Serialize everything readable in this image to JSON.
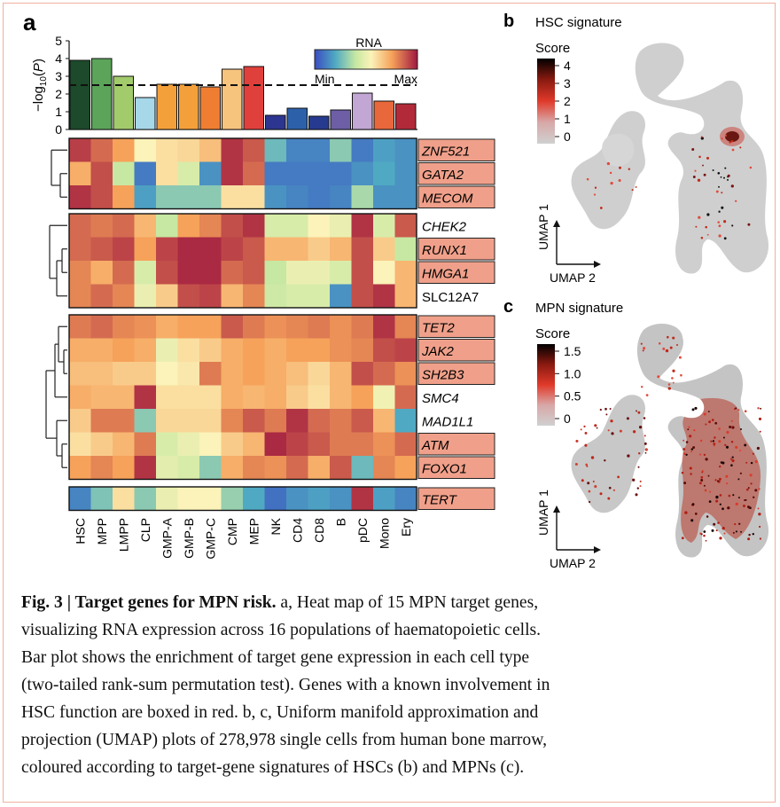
{
  "panels": {
    "a_label": "a",
    "b_label": "b",
    "c_label": "c",
    "b_title": "HSC signature",
    "c_title": "MPN signature"
  },
  "colors": {
    "gene_box": "#f0a08a",
    "dendrogram": "#222222"
  },
  "chart_data": [
    {
      "type": "bar",
      "title": "",
      "ylabel": "-log10(P)",
      "ylim": [
        0,
        5
      ],
      "yticks": [
        0,
        1,
        2,
        3,
        4,
        5
      ],
      "threshold": 2.5,
      "categories": [
        "HSC",
        "MPP",
        "LMPP",
        "CLP",
        "GMP-A",
        "GMP-B",
        "GMP-C",
        "CMP",
        "MEP",
        "NK",
        "CD4",
        "CD8",
        "B",
        "pDC",
        "Mono",
        "Ery"
      ],
      "values": [
        3.9,
        4.0,
        3.0,
        1.8,
        2.55,
        2.55,
        2.4,
        3.4,
        3.55,
        0.8,
        1.2,
        0.75,
        1.1,
        2.05,
        1.6,
        1.45
      ],
      "bar_colors": [
        "#1c4a2a",
        "#5ba45a",
        "#a2cc6c",
        "#a6d8ea",
        "#f4a03a",
        "#f4a03a",
        "#ef7e32",
        "#f7c47e",
        "#e0403c",
        "#2c3590",
        "#2c61aa",
        "#263a90",
        "#6d5ea6",
        "#c2a6d3",
        "#e8683c",
        "#b22a3a"
      ]
    },
    {
      "type": "heatmap",
      "colorbar": {
        "title": "RNA",
        "min_label": "Min",
        "max_label": "Max"
      },
      "columns": [
        "HSC",
        "MPP",
        "LMPP",
        "CLP",
        "GMP-A",
        "GMP-B",
        "GMP-C",
        "CMP",
        "MEP",
        "NK",
        "CD4",
        "CD8",
        "B",
        "pDC",
        "Mono",
        "Ery"
      ],
      "groups": [
        {
          "genes": [
            "ZNF521",
            "GATA2",
            "MECOM"
          ],
          "boxed": [
            true,
            true,
            true
          ],
          "values": [
            [
              0.93,
              0.85,
              0.75,
              0.55,
              0.6,
              0.62,
              0.68,
              0.95,
              0.88,
              0.25,
              0.12,
              0.12,
              0.3,
              0.1,
              0.18,
              0.15
            ],
            [
              0.72,
              0.9,
              0.4,
              0.1,
              0.6,
              0.45,
              0.15,
              0.95,
              0.85,
              0.1,
              0.1,
              0.1,
              0.1,
              0.15,
              0.2,
              0.15
            ],
            [
              0.95,
              0.9,
              0.75,
              0.18,
              0.3,
              0.3,
              0.3,
              0.6,
              0.6,
              0.15,
              0.12,
              0.1,
              0.12,
              0.35,
              0.15,
              0.15
            ]
          ]
        },
        {
          "genes": [
            "CHEK2",
            "RUNX1",
            "HMGA1",
            "SLC12A7"
          ],
          "boxed": [
            false,
            true,
            true,
            false
          ],
          "values": [
            [
              0.85,
              0.82,
              0.85,
              0.7,
              0.4,
              0.75,
              0.8,
              0.9,
              0.95,
              0.45,
              0.45,
              0.55,
              0.5,
              0.95,
              0.45,
              0.88
            ],
            [
              0.85,
              0.88,
              0.92,
              0.75,
              0.92,
              0.97,
              0.97,
              0.92,
              0.88,
              0.7,
              0.7,
              0.65,
              0.7,
              0.9,
              0.65,
              0.4
            ],
            [
              0.8,
              0.72,
              0.85,
              0.45,
              0.9,
              0.97,
              0.97,
              0.85,
              0.88,
              0.4,
              0.5,
              0.5,
              0.45,
              0.9,
              0.55,
              0.7
            ],
            [
              0.8,
              0.85,
              0.8,
              0.5,
              0.65,
              0.9,
              0.92,
              0.7,
              0.8,
              0.42,
              0.45,
              0.45,
              0.15,
              0.9,
              0.95,
              0.7
            ]
          ]
        },
        {
          "genes": [
            "TET2",
            "JAK2",
            "SH2B3",
            "SMC4",
            "MAD1L1",
            "ATM",
            "FOXO1"
          ],
          "boxed": [
            true,
            true,
            true,
            false,
            false,
            true,
            true
          ],
          "values": [
            [
              0.82,
              0.85,
              0.8,
              0.78,
              0.72,
              0.75,
              0.75,
              0.88,
              0.82,
              0.78,
              0.8,
              0.82,
              0.78,
              0.82,
              0.95,
              0.8
            ],
            [
              0.72,
              0.72,
              0.75,
              0.72,
              0.5,
              0.6,
              0.65,
              0.72,
              0.75,
              0.72,
              0.75,
              0.75,
              0.78,
              0.8,
              0.9,
              0.92
            ],
            [
              0.68,
              0.68,
              0.65,
              0.65,
              0.55,
              0.58,
              0.82,
              0.72,
              0.75,
              0.72,
              0.68,
              0.62,
              0.7,
              0.9,
              0.85,
              0.78
            ],
            [
              0.72,
              0.7,
              0.7,
              0.95,
              0.6,
              0.6,
              0.6,
              0.72,
              0.7,
              0.72,
              0.65,
              0.6,
              0.7,
              0.75,
              0.52,
              0.85
            ],
            [
              0.65,
              0.82,
              0.82,
              0.3,
              0.62,
              0.62,
              0.62,
              0.8,
              0.88,
              0.82,
              0.95,
              0.85,
              0.82,
              0.88,
              0.7,
              0.2
            ],
            [
              0.6,
              0.65,
              0.7,
              0.82,
              0.45,
              0.5,
              0.55,
              0.65,
              0.7,
              0.97,
              0.92,
              0.88,
              0.82,
              0.82,
              0.78,
              0.85
            ],
            [
              0.75,
              0.8,
              0.75,
              0.95,
              0.48,
              0.45,
              0.3,
              0.72,
              0.8,
              0.78,
              0.85,
              0.72,
              0.88,
              0.25,
              0.8,
              0.75
            ]
          ]
        },
        {
          "genes": [
            "TERT"
          ],
          "boxed": [
            true
          ],
          "values": [
            [
              0.12,
              0.28,
              0.6,
              0.3,
              0.5,
              0.55,
              0.55,
              0.32,
              0.2,
              0.08,
              0.15,
              0.18,
              0.15,
              0.95,
              0.18,
              0.12
            ]
          ]
        }
      ]
    },
    {
      "type": "scatter",
      "title": "HSC signature",
      "colorbar": {
        "title": "Score",
        "ticks": [
          "4",
          "3",
          "2",
          "1",
          "0"
        ]
      },
      "xlabel": "UMAP 2",
      "ylabel": "UMAP 1"
    },
    {
      "type": "scatter",
      "title": "MPN signature",
      "colorbar": {
        "title": "Score",
        "ticks": [
          "1.5",
          "1.0",
          "0.5",
          "0"
        ]
      },
      "xlabel": "UMAP 2",
      "ylabel": "UMAP 1"
    }
  ],
  "caption": {
    "label": "Fig. 3 | Target genes for MPN risk.",
    "lines": [
      " a, Heat map of 15 MPN target genes,",
      "visualizing RNA expression across 16 populations of haematopoietic cells.",
      "Bar plot shows the enrichment of target gene expression in each cell type",
      "(two-tailed rank-sum permutation test). Genes with a known involvement in",
      "HSC function are boxed in red. b, c, Uniform manifold approximation and",
      "projection (UMAP) plots of 278,978 single cells from human bone marrow,",
      "coloured according to target-gene signatures of HSCs (b) and MPNs (c)."
    ]
  }
}
